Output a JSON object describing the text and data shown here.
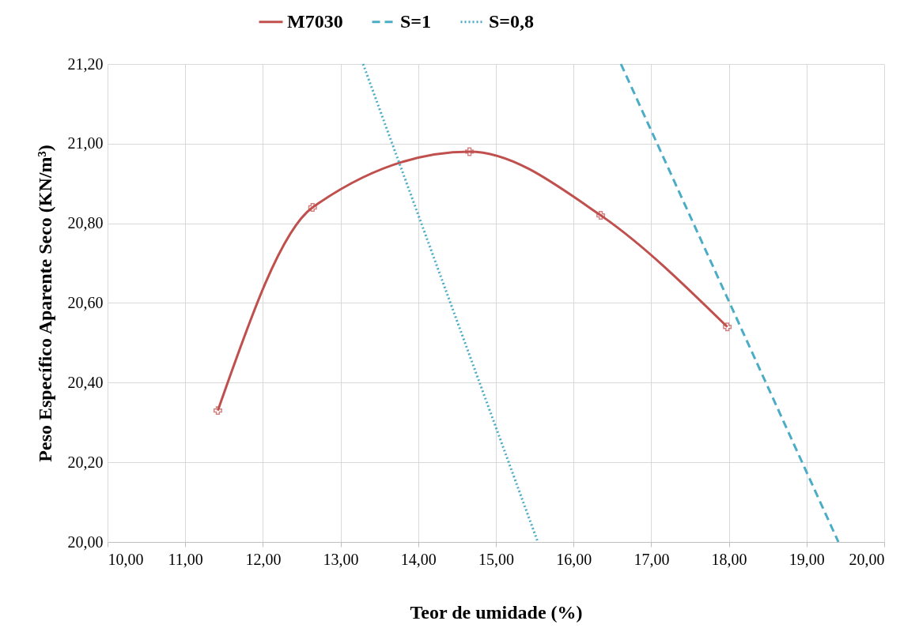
{
  "chart_data": {
    "type": "line",
    "xlabel": "Teor de umidade (%)",
    "ylabel": "Peso Específico Aparente Seco (KN/m³)",
    "xlim": [
      10,
      20
    ],
    "ylim": [
      20,
      21.2
    ],
    "xticks": [
      {
        "value": 10,
        "label": "10,00"
      },
      {
        "value": 11,
        "label": "11,00"
      },
      {
        "value": 12,
        "label": "12,00"
      },
      {
        "value": 13,
        "label": "13,00"
      },
      {
        "value": 14,
        "label": "14,00"
      },
      {
        "value": 15,
        "label": "15,00"
      },
      {
        "value": 16,
        "label": "16,00"
      },
      {
        "value": 17,
        "label": "17,00"
      },
      {
        "value": 18,
        "label": "18,00"
      },
      {
        "value": 19,
        "label": "19,00"
      },
      {
        "value": 20,
        "label": "20,00"
      }
    ],
    "yticks": [
      {
        "value": 20,
        "label": "20,00"
      },
      {
        "value": 20.2,
        "label": "20,20"
      },
      {
        "value": 20.4,
        "label": "20,40"
      },
      {
        "value": 20.6,
        "label": "20,60"
      },
      {
        "value": 20.8,
        "label": "20,80"
      },
      {
        "value": 21,
        "label": "21,00"
      },
      {
        "value": 21.2,
        "label": "21,20"
      }
    ],
    "grid": true,
    "legend": "top",
    "series": [
      {
        "name": "M7030",
        "color": "#c0504d",
        "x": [
          11.42,
          12.64,
          14.66,
          16.35,
          17.98
        ],
        "values": [
          20.33,
          20.84,
          20.98,
          20.82,
          20.54
        ],
        "marker": "cross",
        "line_style": "solid"
      },
      {
        "name": "S=1",
        "color": "#4bacc6",
        "x": [
          16.61,
          19.41
        ],
        "values": [
          21.2,
          20.0
        ],
        "marker": "none",
        "line_style": "dashed"
      },
      {
        "name": "S=0,8",
        "color": "#4bacc6",
        "x": [
          13.29,
          15.54
        ],
        "values": [
          21.2,
          20.0
        ],
        "marker": "none",
        "line_style": "dotted"
      }
    ]
  }
}
